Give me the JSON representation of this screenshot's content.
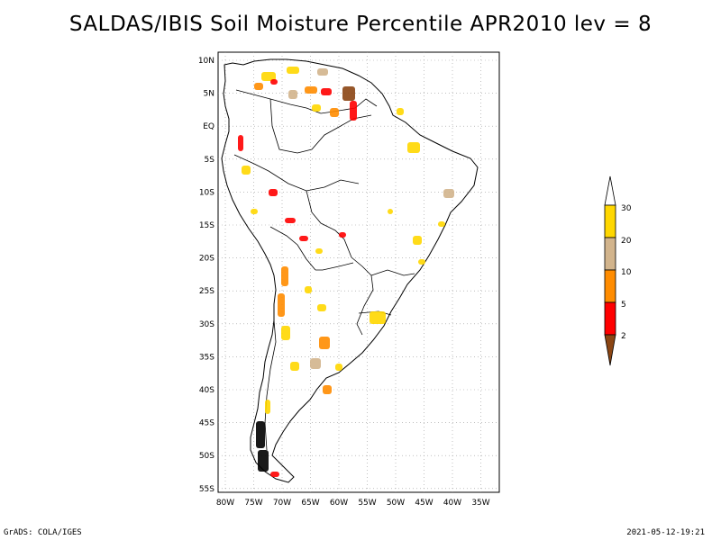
{
  "title": "SALDAS/IBIS Soil Moisture Percentile APR2010 lev = 8",
  "map": {
    "region": "South America",
    "lat_range": [
      -56,
      12
    ],
    "lon_range": [
      -82,
      -32
    ],
    "lat_ticks": [
      "10N",
      "5N",
      "EQ",
      "5S",
      "10S",
      "15S",
      "20S",
      "25S",
      "30S",
      "35S",
      "40S",
      "45S",
      "50S",
      "55S"
    ],
    "lon_ticks": [
      "80W",
      "75W",
      "70W",
      "65W",
      "60W",
      "55W",
      "50W",
      "45W",
      "40W",
      "35W"
    ],
    "grid": true
  },
  "legend": {
    "labels": [
      "2",
      "5",
      "10",
      "20",
      "30"
    ],
    "colors": {
      "below_2": "#8b4513",
      "2_5": "#ff0000",
      "5_10": "#ff8c00",
      "10_20": "#d2b48c",
      "20_30": "#ffd700",
      "above_30": "#ffffff"
    }
  },
  "footer": {
    "left": "GrADS: COLA/IGES",
    "right": "2021-05-12-19:21"
  }
}
